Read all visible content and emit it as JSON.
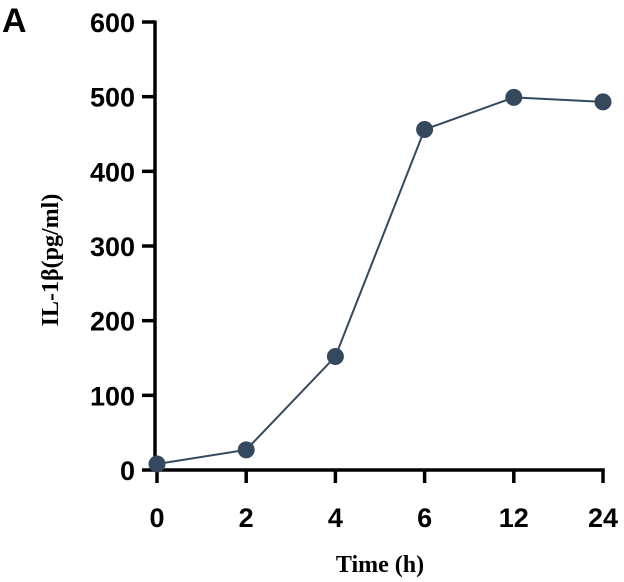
{
  "panel_label": "A",
  "chart_data": {
    "type": "line",
    "xlabel": "Time (h)",
    "ylabel": "IL-1β(pg/ml)",
    "categories": [
      "0",
      "2",
      "4",
      "6",
      "12",
      "24"
    ],
    "yticks": [
      0,
      100,
      200,
      300,
      400,
      500,
      600
    ],
    "ylim": [
      0,
      600
    ],
    "grid": false,
    "series": [
      {
        "values": [
          8,
          27,
          152,
          456,
          499,
          493
        ],
        "color": "#34495e"
      }
    ]
  }
}
